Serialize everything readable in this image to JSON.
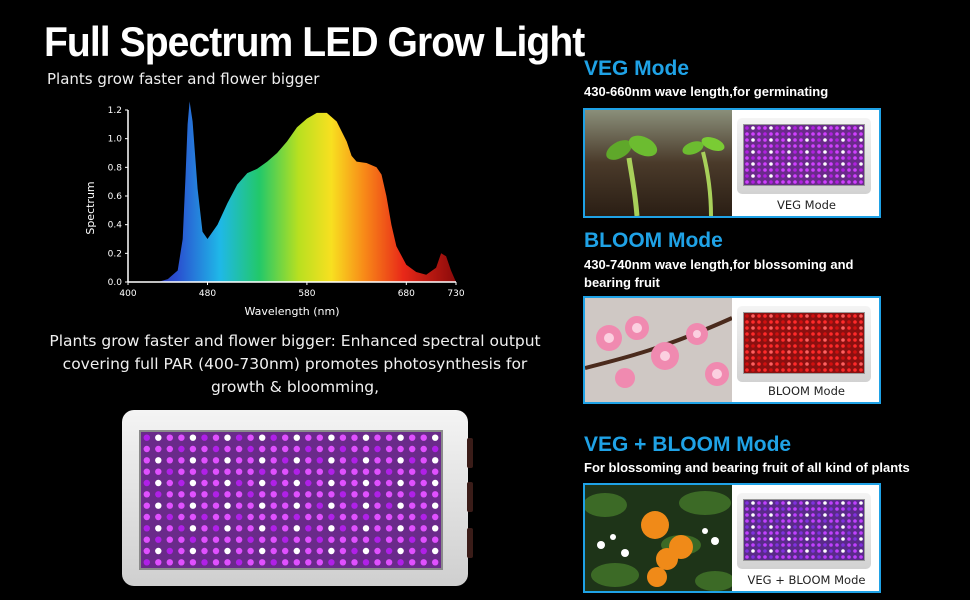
{
  "header": {
    "title": "Full Spectrum LED Grow Light",
    "subtitle": "Plants grow faster and flower bigger"
  },
  "chart_data": {
    "type": "area",
    "xlabel": "Wavelength (nm)",
    "ylabel": "Spectrum",
    "xlim": [
      400,
      730
    ],
    "ylim": [
      0,
      1.2
    ],
    "x_ticks": [
      400,
      480,
      580,
      680,
      730
    ],
    "y_ticks": [
      0.0,
      0.2,
      0.4,
      0.6,
      0.8,
      1.0,
      1.2
    ],
    "x_tick_labels": [
      "400",
      "480",
      "580",
      "680",
      "730"
    ],
    "y_tick_labels": [
      "0.0",
      "0.2",
      "0.4",
      "0.6",
      "0.8",
      "1.0",
      "1.2"
    ],
    "grid": false,
    "x": [
      430,
      440,
      450,
      455,
      458,
      460,
      462,
      465,
      470,
      475,
      480,
      490,
      500,
      510,
      520,
      530,
      540,
      550,
      560,
      570,
      580,
      590,
      600,
      610,
      620,
      625,
      630,
      640,
      650,
      655,
      660,
      665,
      670,
      680,
      690,
      700,
      710,
      715,
      720,
      725,
      730
    ],
    "y": [
      0.0,
      0.02,
      0.08,
      0.3,
      0.75,
      1.1,
      1.26,
      1.12,
      0.65,
      0.35,
      0.3,
      0.4,
      0.55,
      0.68,
      0.76,
      0.79,
      0.84,
      0.9,
      0.98,
      1.08,
      1.14,
      1.18,
      1.18,
      1.12,
      0.98,
      0.88,
      0.84,
      0.83,
      0.8,
      0.75,
      0.6,
      0.4,
      0.25,
      0.12,
      0.07,
      0.05,
      0.1,
      0.2,
      0.18,
      0.08,
      0.0
    ]
  },
  "description": {
    "text": "Plants grow faster and flower bigger: Enhanced spectral output covering full PAR (400-730nm) promotes photosynthesis for growth & bloomming,"
  },
  "modes": [
    {
      "title": "VEG Mode",
      "description": "430-660nm wave length,for germinating",
      "caption": "VEG Mode",
      "photo": "seedling-photo",
      "led_colors": [
        "#d040ff",
        "#ffffff",
        "#b020e0"
      ]
    },
    {
      "title": "BLOOM Mode",
      "description": "430-740nm wave length,for blossoming and bearing fruit",
      "caption": "BLOOM Mode",
      "photo": "blossom-photo",
      "led_colors": [
        "#ff2a2a",
        "#ff6060",
        "#d01010"
      ]
    },
    {
      "title": "VEG + BLOOM Mode",
      "description": "For blossoming and bearing fruit of all kind of plants",
      "caption": "VEG + BLOOM Mode",
      "photo": "orange-tree-photo",
      "led_colors": [
        "#c040ff",
        "#ffffff",
        "#8030e0"
      ]
    }
  ],
  "colors": {
    "accent": "#1fa2e6",
    "background": "#000000"
  }
}
